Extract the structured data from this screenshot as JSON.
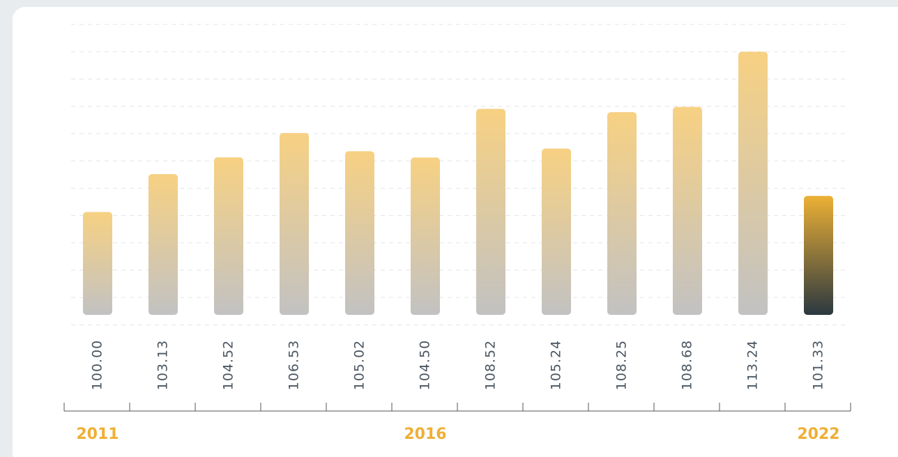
{
  "chart_data": {
    "type": "bar",
    "categories": [
      "2011",
      null,
      null,
      null,
      null,
      "2016",
      null,
      null,
      null,
      null,
      null,
      "2022"
    ],
    "values": [
      100.0,
      103.13,
      104.52,
      106.53,
      105.02,
      104.5,
      108.52,
      105.24,
      108.25,
      108.68,
      113.24,
      101.33
    ],
    "value_labels": [
      "100.00",
      "103.13",
      "104.52",
      "106.53",
      "105.02",
      "104.50",
      "108.52",
      "105.24",
      "108.25",
      "108.68",
      "113.24",
      "101.33"
    ],
    "colors": [
      "#f7d183",
      "#f7d183",
      "#f7d183",
      "#f7d183",
      "#f7d183",
      "#f7d183",
      "#f7d183",
      "#f7d183",
      "#f7d183",
      "#f7d183",
      "#f7d183",
      "#ecb035"
    ],
    "ylim": [
      91.5,
      115.5
    ],
    "grid": true
  }
}
